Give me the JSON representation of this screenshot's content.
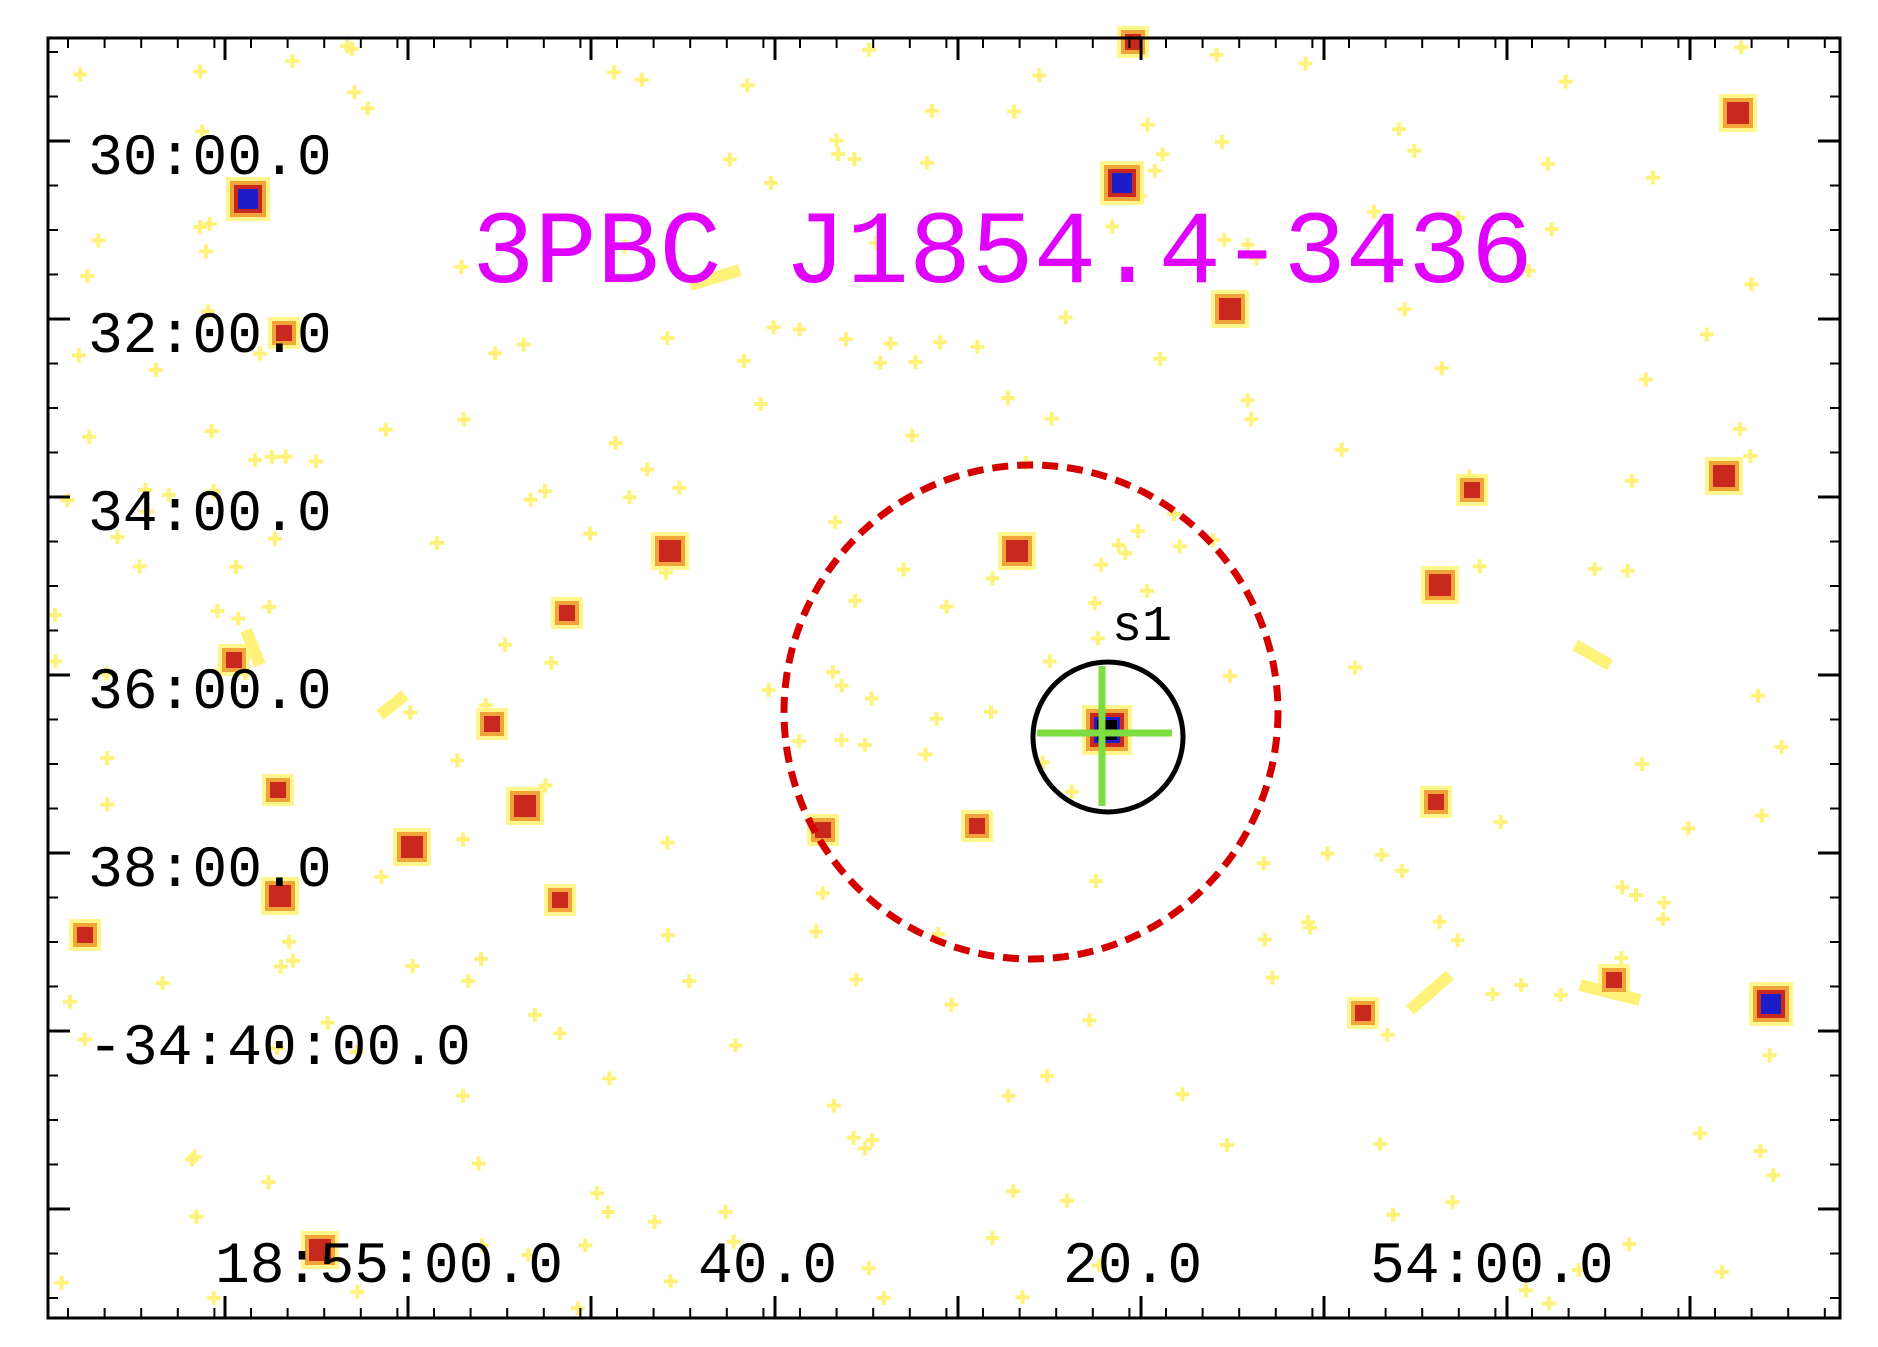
{
  "title": "3PBC J1854.4-3436",
  "source_label": "s1",
  "dec_labels": [
    "30:00.0",
    "32:00.0",
    "34:00.0",
    "36:00.0",
    "38:00.0",
    "-34:40:00.0"
  ],
  "ra_labels": [
    "18:55:00.0",
    "40.0",
    "20.0",
    "54:00.0"
  ],
  "colors": {
    "title": "#e000ff",
    "positional_error_circle": "#d40000",
    "source_circle": "#000000",
    "crosshair": "#7ddc3f",
    "background": "#ffffff",
    "frame": "#000000"
  },
  "overlays": {
    "positional_error_circle": "dashed",
    "source_circle": "solid",
    "crosshair": "cross"
  }
}
